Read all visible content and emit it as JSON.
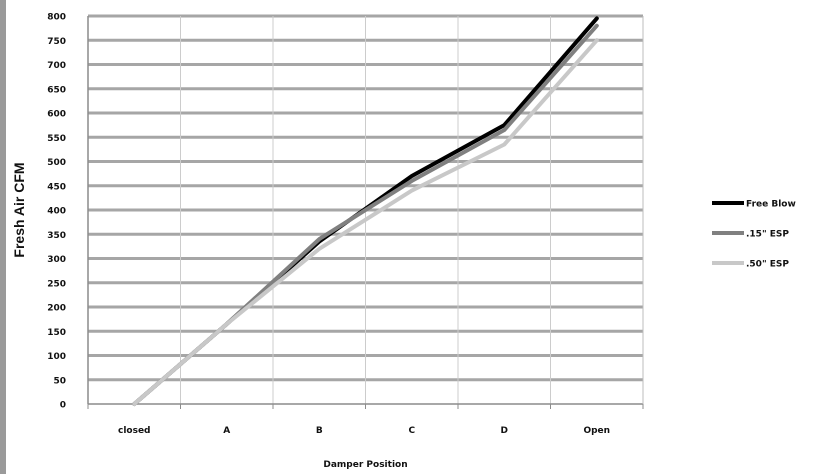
{
  "chart_data": {
    "type": "line",
    "title": "",
    "xlabel": "Damper Position",
    "ylabel": "Fresh Air CFM",
    "categories": [
      "closed",
      "A",
      "B",
      "C",
      "D",
      "Open"
    ],
    "ylim": [
      0,
      800
    ],
    "ytick_step": 50,
    "grid": true,
    "legend_position": "right",
    "series": [
      {
        "name": "Free Blow",
        "color": "#000000",
        "values": [
          0,
          165,
          335,
          470,
          575,
          795
        ]
      },
      {
        "name": ".15\" ESP",
        "color": "#808080",
        "values": [
          0,
          165,
          340,
          460,
          565,
          780
        ]
      },
      {
        "name": ".50\" ESP",
        "color": "#c8c8c8",
        "values": [
          0,
          165,
          320,
          440,
          535,
          750
        ]
      }
    ]
  }
}
